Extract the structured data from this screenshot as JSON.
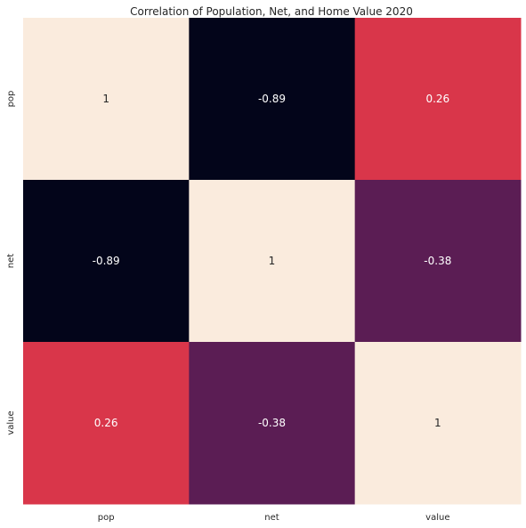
{
  "chart_data": {
    "type": "heatmap",
    "title": "Correlation of Population, Net, and Home Value 2020",
    "x_labels": [
      "pop",
      "net",
      "value"
    ],
    "y_labels": [
      "pop",
      "net",
      "value"
    ],
    "values": [
      [
        1,
        -0.89,
        0.26
      ],
      [
        -0.89,
        1,
        -0.38
      ],
      [
        0.26,
        -0.38,
        1
      ]
    ],
    "cell_labels": [
      [
        "1",
        "-0.89",
        "0.26"
      ],
      [
        "-0.89",
        "1",
        "-0.38"
      ],
      [
        "0.26",
        "-0.38",
        "1"
      ]
    ],
    "colormap": "rocket",
    "vmin": -0.89,
    "vmax": 1,
    "colorbar": false,
    "grid": false
  }
}
